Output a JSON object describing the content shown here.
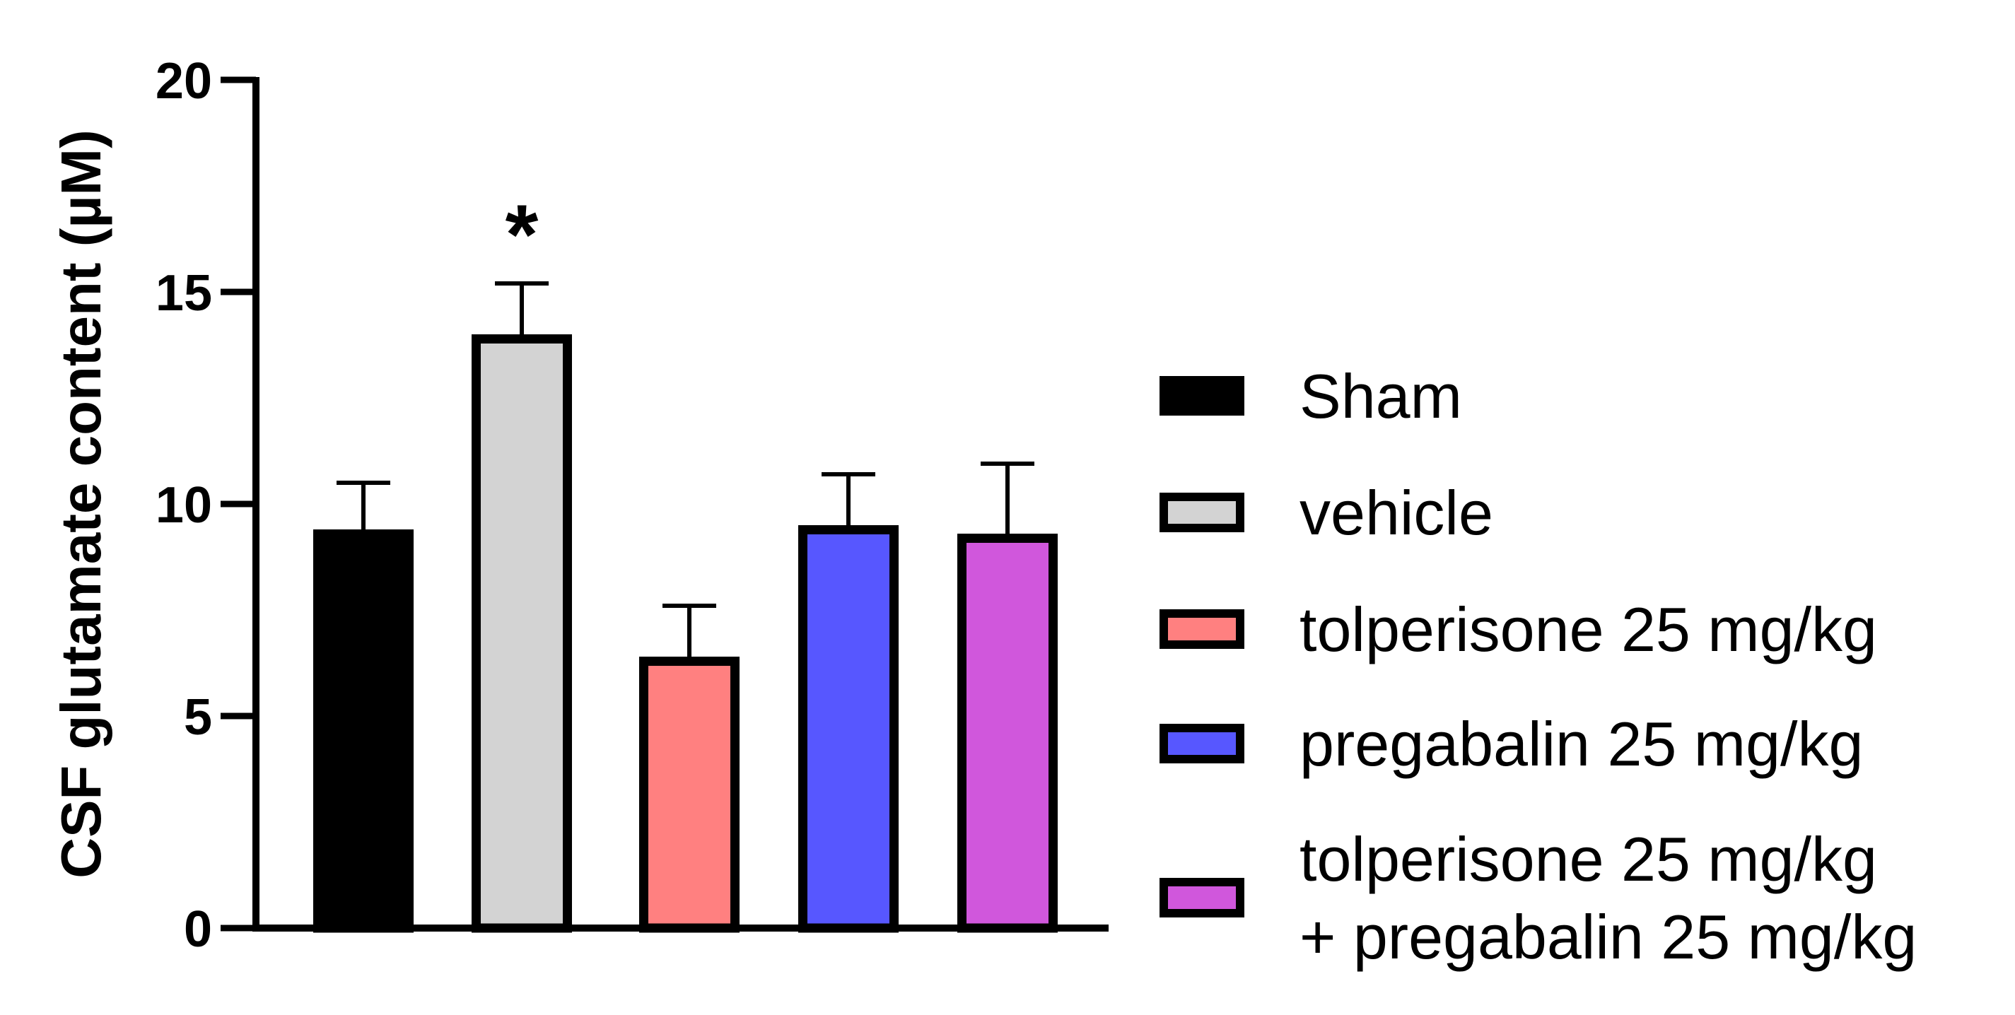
{
  "chart_data": {
    "type": "bar",
    "title": "",
    "xlabel": "",
    "ylabel": "CSF glutamate content (µM)",
    "ylim": [
      0,
      20
    ],
    "yticks": [
      "0",
      "5",
      "10",
      "15",
      "20"
    ],
    "grid": false,
    "legend_position": "right",
    "categories": [
      "Sham",
      "vehicle",
      "tolperisone 25 mg/kg",
      "pregabalin 25 mg/kg",
      "tolperisone 25 mg/kg + pregabalin 25 mg/kg"
    ],
    "legend_lines": [
      [
        "Sham"
      ],
      [
        "vehicle"
      ],
      [
        "tolperisone 25 mg/kg"
      ],
      [
        "pregabalin 25 mg/kg"
      ],
      [
        "tolperisone 25 mg/kg",
        "+ pregabalin 25 mg/kg"
      ]
    ],
    "values": [
      9.4,
      14.0,
      6.4,
      9.5,
      9.3
    ],
    "errors": [
      1.1,
      1.2,
      1.2,
      1.2,
      1.65
    ],
    "colors": [
      "#000000",
      "#d3d3d3",
      "#ff8080",
      "#5757ff",
      "#d057dc"
    ],
    "annotations": [
      {
        "bar": 1,
        "text": "*"
      }
    ]
  }
}
